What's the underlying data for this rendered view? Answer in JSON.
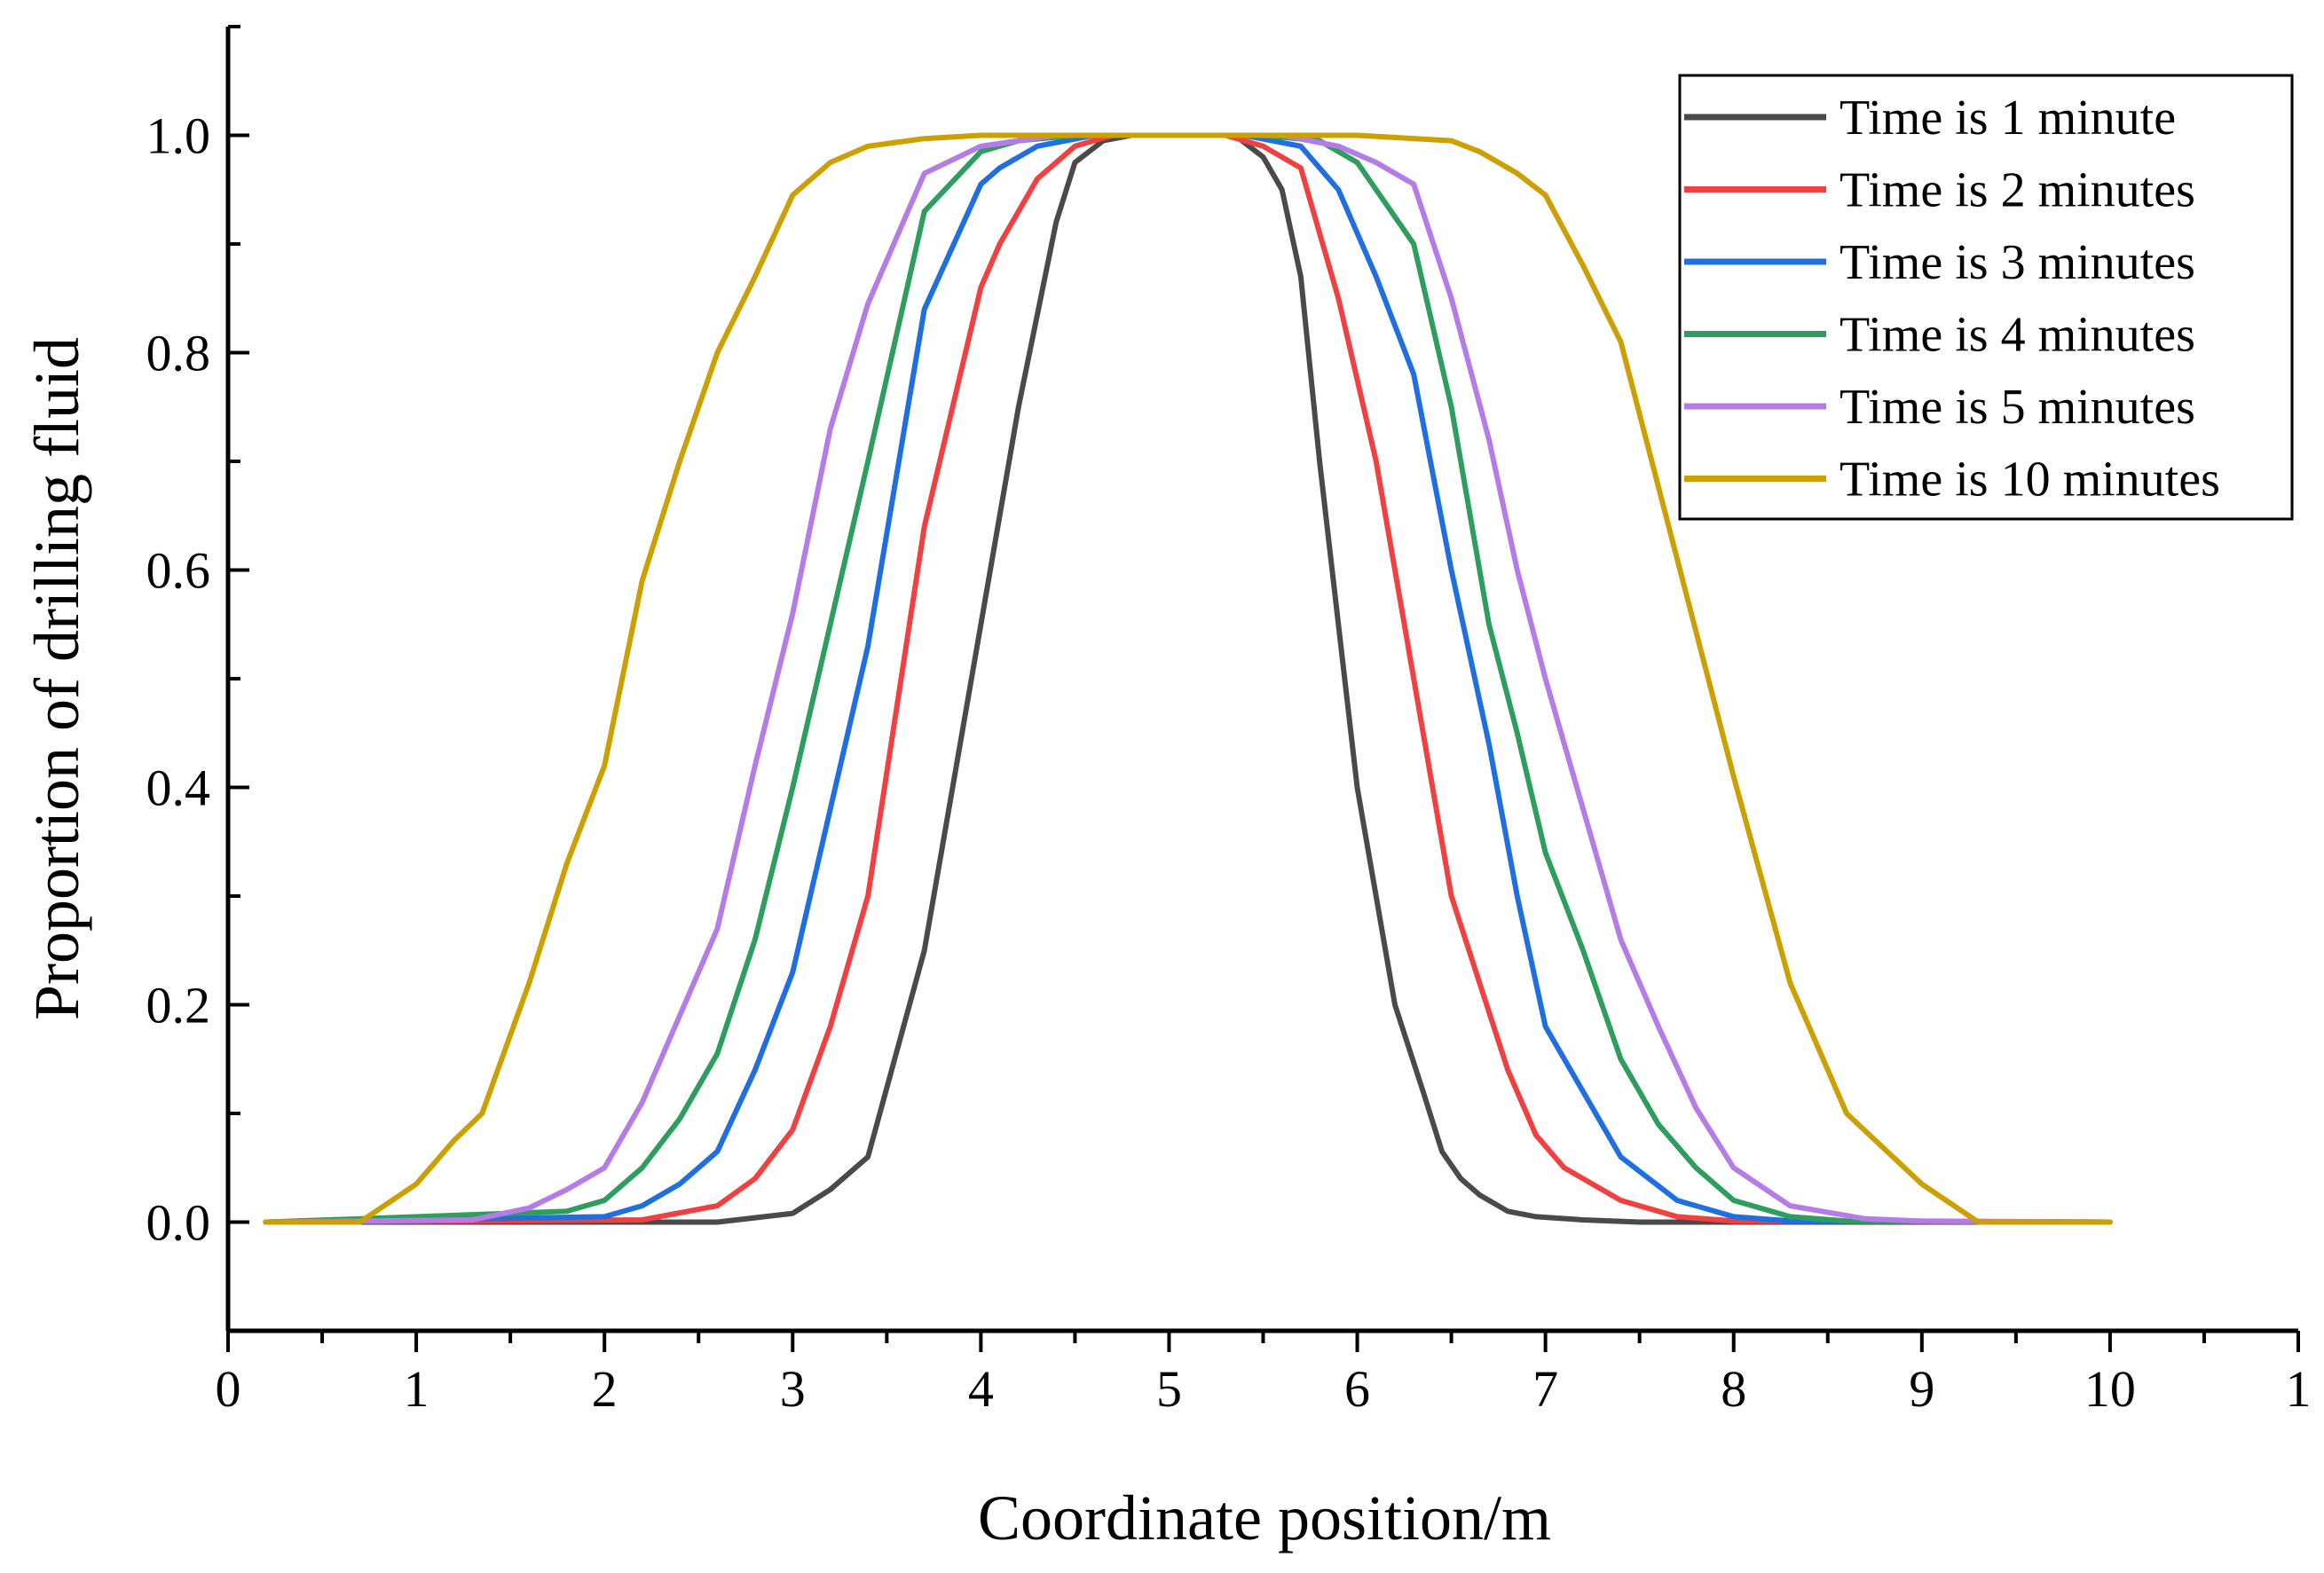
{
  "chart_data": {
    "type": "line",
    "title": "",
    "xlabel": "Coordinate position/m",
    "ylabel": "Proportion of drilling fluid",
    "xlim": [
      0,
      11
    ],
    "ylim": [
      -0.1,
      1.1
    ],
    "x_ticks": [
      "0",
      "1",
      "2",
      "3",
      "4",
      "5",
      "6",
      "7",
      "8",
      "9",
      "10",
      "1"
    ],
    "y_ticks": [
      "0.0",
      "0.2",
      "0.4",
      "0.6",
      "0.8",
      "1.0"
    ],
    "grid": false,
    "legend_position": "top-right",
    "series": [
      {
        "name": "Time is 1 minute",
        "color": "#4a4a4a",
        "x": [
          0.2,
          2.6,
          3.0,
          3.2,
          3.4,
          3.7,
          4.0,
          4.2,
          4.4,
          4.5,
          4.65,
          4.8,
          5.0,
          5.2,
          5.35,
          5.5,
          5.6,
          5.7,
          5.8,
          6.0,
          6.2,
          6.35,
          6.45,
          6.55,
          6.65,
          6.8,
          6.95,
          7.2,
          7.5,
          10.0
        ],
        "y": [
          0.0,
          0.0,
          0.008,
          0.03,
          0.06,
          0.25,
          0.55,
          0.75,
          0.92,
          0.975,
          0.995,
          1.0,
          1.0,
          1.0,
          1.0,
          0.98,
          0.95,
          0.87,
          0.7,
          0.4,
          0.2,
          0.12,
          0.065,
          0.04,
          0.025,
          0.01,
          0.005,
          0.002,
          0.0,
          0.0
        ]
      },
      {
        "name": "Time is 2 minutes",
        "color": "#f04040",
        "x": [
          0.2,
          2.2,
          2.6,
          2.8,
          3.0,
          3.2,
          3.4,
          3.7,
          4.0,
          4.1,
          4.3,
          4.5,
          4.7,
          5.0,
          5.3,
          5.5,
          5.7,
          5.9,
          6.1,
          6.3,
          6.5,
          6.65,
          6.8,
          6.95,
          7.1,
          7.4,
          7.7,
          8.0,
          10.0
        ],
        "y": [
          0.0,
          0.002,
          0.015,
          0.04,
          0.085,
          0.18,
          0.3,
          0.64,
          0.86,
          0.9,
          0.96,
          0.99,
          1.0,
          1.0,
          1.0,
          0.99,
          0.97,
          0.85,
          0.7,
          0.5,
          0.3,
          0.22,
          0.14,
          0.08,
          0.05,
          0.02,
          0.005,
          0.001,
          0.0
        ]
      },
      {
        "name": "Time is 3 minutes",
        "color": "#1f6fe0",
        "x": [
          0.2,
          2.0,
          2.2,
          2.4,
          2.6,
          2.8,
          3.0,
          3.2,
          3.4,
          3.7,
          4.0,
          4.1,
          4.3,
          4.6,
          5.0,
          5.4,
          5.7,
          5.9,
          6.1,
          6.3,
          6.5,
          6.7,
          6.85,
          7.0,
          7.2,
          7.4,
          7.7,
          8.0,
          8.3,
          10.0
        ],
        "y": [
          0.0,
          0.005,
          0.015,
          0.035,
          0.065,
          0.14,
          0.23,
          0.38,
          0.53,
          0.84,
          0.955,
          0.97,
          0.99,
          1.0,
          1.0,
          1.0,
          0.99,
          0.95,
          0.87,
          0.78,
          0.6,
          0.44,
          0.3,
          0.18,
          0.12,
          0.06,
          0.02,
          0.005,
          0.001,
          0.0
        ]
      },
      {
        "name": "Time is 4 minutes",
        "color": "#2e9e5e",
        "x": [
          0.2,
          1.8,
          2.0,
          2.2,
          2.4,
          2.6,
          2.8,
          3.0,
          3.2,
          3.4,
          3.7,
          4.0,
          4.2,
          4.5,
          5.0,
          5.5,
          5.8,
          6.0,
          6.3,
          6.5,
          6.7,
          6.85,
          7.0,
          7.2,
          7.4,
          7.6,
          7.8,
          8.0,
          8.3,
          8.6,
          10.0
        ],
        "y": [
          0.0,
          0.01,
          0.02,
          0.05,
          0.095,
          0.155,
          0.26,
          0.4,
          0.55,
          0.7,
          0.93,
          0.985,
          0.995,
          1.0,
          1.0,
          1.0,
          0.995,
          0.975,
          0.9,
          0.75,
          0.55,
          0.45,
          0.34,
          0.25,
          0.15,
          0.09,
          0.05,
          0.02,
          0.005,
          0.001,
          0.0
        ]
      },
      {
        "name": "Time is 5 minutes",
        "color": "#b57be6",
        "x": [
          0.2,
          1.3,
          1.6,
          1.8,
          2.0,
          2.2,
          2.4,
          2.6,
          2.8,
          3.0,
          3.2,
          3.4,
          3.7,
          4.0,
          4.4,
          5.0,
          5.6,
          5.9,
          6.1,
          6.3,
          6.5,
          6.7,
          6.85,
          7.0,
          7.2,
          7.4,
          7.6,
          7.8,
          8.0,
          8.3,
          8.7,
          9.0,
          10.0
        ],
        "y": [
          0.0,
          0.002,
          0.013,
          0.03,
          0.05,
          0.11,
          0.19,
          0.27,
          0.42,
          0.56,
          0.73,
          0.845,
          0.965,
          0.99,
          1.0,
          1.0,
          1.0,
          0.99,
          0.975,
          0.955,
          0.85,
          0.72,
          0.6,
          0.5,
          0.38,
          0.26,
          0.18,
          0.105,
          0.05,
          0.015,
          0.003,
          0.001,
          0.0
        ]
      },
      {
        "name": "Time is 10 minutes",
        "color": "#cca000",
        "x": [
          0.2,
          0.7,
          1.0,
          1.2,
          1.35,
          1.6,
          1.8,
          2.0,
          2.2,
          2.4,
          2.6,
          2.8,
          3.0,
          3.2,
          3.4,
          3.7,
          4.0,
          4.5,
          5.0,
          5.5,
          6.0,
          6.5,
          6.65,
          6.85,
          7.0,
          7.2,
          7.4,
          7.7,
          8.0,
          8.3,
          8.6,
          9.0,
          9.3,
          10.0
        ],
        "y": [
          0.0,
          0.0,
          0.035,
          0.075,
          0.1,
          0.22,
          0.33,
          0.42,
          0.59,
          0.7,
          0.8,
          0.87,
          0.945,
          0.975,
          0.99,
          0.997,
          1.0,
          1.0,
          1.0,
          1.0,
          1.0,
          0.995,
          0.985,
          0.965,
          0.945,
          0.88,
          0.81,
          0.61,
          0.41,
          0.22,
          0.1,
          0.035,
          0.0,
          0.0
        ]
      }
    ]
  }
}
